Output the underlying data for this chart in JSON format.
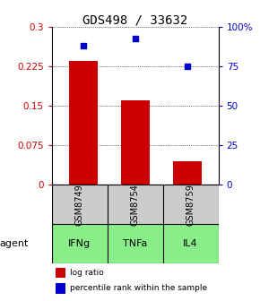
{
  "title": "GDS498 / 33632",
  "categories": [
    "GSM8749",
    "GSM8754",
    "GSM8759"
  ],
  "agents": [
    "IFNg",
    "TNFa",
    "IL4"
  ],
  "log_ratios": [
    0.235,
    0.16,
    0.045
  ],
  "percentile_ranks": [
    88,
    93,
    75
  ],
  "bar_color": "#cc0000",
  "marker_color": "#0000cc",
  "left_ylim": [
    0,
    0.3
  ],
  "right_ylim": [
    0,
    100
  ],
  "left_yticks": [
    0,
    0.075,
    0.15,
    0.225,
    0.3
  ],
  "left_yticklabels": [
    "0",
    "0.075",
    "0.15",
    "0.225",
    "0.3"
  ],
  "right_yticks": [
    0,
    25,
    50,
    75,
    100
  ],
  "right_yticklabels": [
    "0",
    "25",
    "50",
    "75",
    "100%"
  ],
  "gray_box_color": "#cccccc",
  "green_box_color": "#88ee88",
  "agent_label": "agent",
  "legend_bar_label": "log ratio",
  "legend_marker_label": "percentile rank within the sample",
  "bar_width": 0.55,
  "title_fontsize": 10,
  "tick_fontsize": 7.5,
  "cat_fontsize": 7,
  "agent_fontsize": 8
}
